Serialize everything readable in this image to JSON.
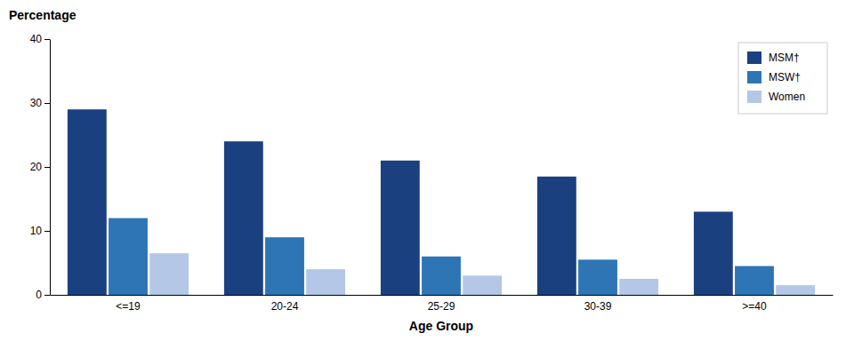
{
  "chart_data": {
    "type": "bar",
    "categories": [
      "<=19",
      "20-24",
      "25-29",
      "30-39",
      ">=40"
    ],
    "series": [
      {
        "name": "MSM†",
        "color": "#1b4080",
        "values": [
          29.0,
          24.0,
          21.0,
          18.5,
          13.0
        ]
      },
      {
        "name": "MSW†",
        "color": "#2e75b6",
        "values": [
          12.0,
          9.0,
          6.0,
          5.5,
          4.5
        ]
      },
      {
        "name": "Women",
        "color": "#b4c7e7",
        "values": [
          6.5,
          4.0,
          3.0,
          2.5,
          1.5
        ]
      }
    ],
    "xlabel": "Age Group",
    "ylabel": "Percentage",
    "ylim": [
      0,
      40
    ],
    "yticks": [
      0,
      10,
      20,
      30,
      40
    ],
    "grid": false,
    "legend": "upper right"
  }
}
